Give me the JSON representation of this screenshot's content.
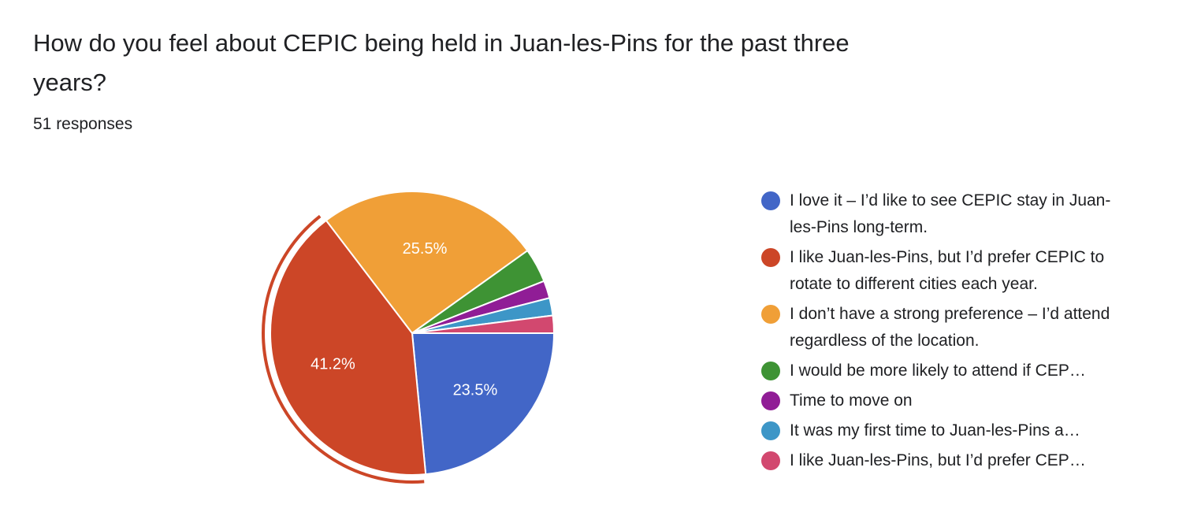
{
  "question": {
    "title": "How do you feel about CEPIC being held in Juan-les-Pins for the past three years?",
    "responses": "51 responses"
  },
  "chart_data": {
    "type": "pie",
    "title": "How do you feel about CEPIC being held in Juan-les-Pins for the past three years?",
    "total_responses": 51,
    "start_angle_deg": 90,
    "highlighted_slice": 1,
    "slices": [
      {
        "label": "I love it – I’d like to see CEPIC stay in Juan-les-Pins long-term.",
        "value": 23.5,
        "display": "23.5%",
        "color": "#4266c7",
        "truncated": false
      },
      {
        "label": "I like Juan-les-Pins, but I’d prefer CEPIC to rotate to different cities each year.",
        "value": 41.2,
        "display": "41.2%",
        "color": "#cc4627",
        "truncated": false
      },
      {
        "label": "I don’t have a strong preference – I’d attend regardless of the location.",
        "value": 25.5,
        "display": "25.5%",
        "color": "#f09f37",
        "truncated": false
      },
      {
        "label": "I would be more likely to attend if CEP…",
        "value": 3.9,
        "display": "",
        "color": "#3e9334",
        "truncated": true
      },
      {
        "label": "Time to move on",
        "value": 2.0,
        "display": "",
        "color": "#901d96",
        "truncated": false
      },
      {
        "label": "It was my first time to Juan-les-Pins a…",
        "value": 2.0,
        "display": "",
        "color": "#3d96c7",
        "truncated": true
      },
      {
        "label": "I like Juan-les-Pins, but I’d prefer CEP…",
        "value": 2.0,
        "display": "",
        "color": "#d2486f",
        "truncated": true
      }
    ]
  }
}
